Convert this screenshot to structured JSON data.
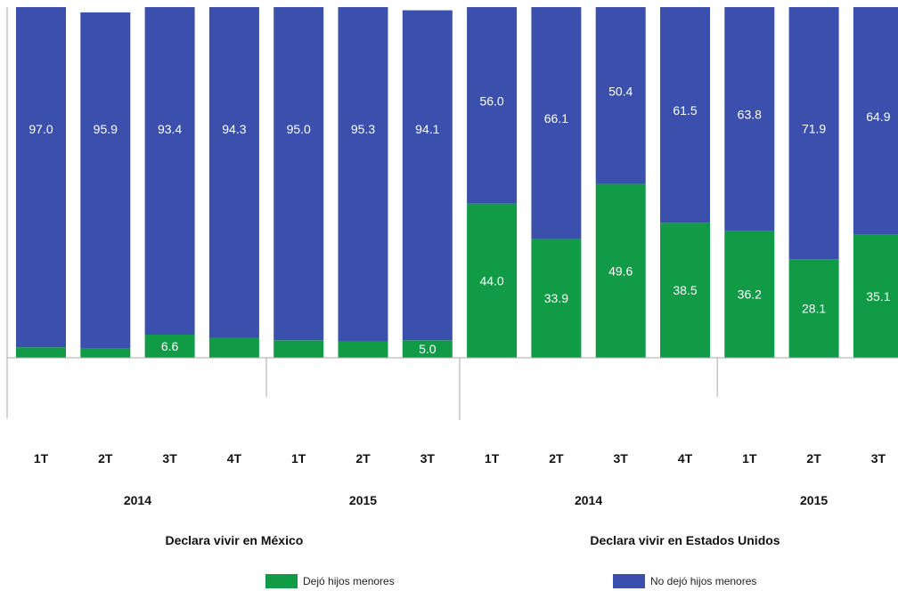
{
  "chart_data": {
    "type": "bar",
    "stacked": true,
    "ylim": [
      0,
      100
    ],
    "colors": {
      "dejo": "#119b47",
      "no_dejo": "#3b4fac",
      "value_label": "#ffffff",
      "axis": "#aaaaaa"
    },
    "groups": [
      {
        "label": "Declara vivir en México",
        "years": [
          {
            "label": "2014",
            "quarters": [
              "1T",
              "2T",
              "3T",
              "4T"
            ]
          },
          {
            "label": "2015",
            "quarters": [
              "1T",
              "2T",
              "3T"
            ]
          }
        ]
      },
      {
        "label": "Declara vivir en Estados Unidos",
        "years": [
          {
            "label": "2014",
            "quarters": [
              "1T",
              "2T",
              "3T",
              "4T"
            ]
          },
          {
            "label": "2015",
            "quarters": [
              "1T",
              "2T",
              "3T"
            ]
          }
        ]
      }
    ],
    "categories": [
      "1T",
      "2T",
      "3T",
      "4T",
      "1T",
      "2T",
      "3T",
      "1T",
      "2T",
      "3T",
      "4T",
      "1T",
      "2T",
      "3T"
    ],
    "series": [
      {
        "name": "Dejó hijos menores",
        "values": [
          3.0,
          2.6,
          6.6,
          5.7,
          5.0,
          4.7,
          5.0,
          44.0,
          33.9,
          49.6,
          38.5,
          36.2,
          28.1,
          35.1
        ],
        "labels": [
          "",
          "",
          "6.6",
          "",
          "",
          "",
          "5.0",
          "44.0",
          "33.9",
          "49.6",
          "38.5",
          "36.2",
          "28.1",
          "35.1"
        ]
      },
      {
        "name": "No dejó hijos menores",
        "values": [
          97.0,
          95.9,
          93.4,
          94.3,
          95.0,
          95.3,
          94.1,
          56.0,
          66.1,
          50.4,
          61.5,
          63.8,
          71.9,
          64.9
        ],
        "labels": [
          "97.0",
          "95.9",
          "93.4",
          "94.3",
          "95.0",
          "95.3",
          "94.1",
          "56.0",
          "66.1",
          "50.4",
          "61.5",
          "63.8",
          "71.9",
          "64.9"
        ]
      }
    ],
    "legend": {
      "position": "bottom"
    }
  }
}
